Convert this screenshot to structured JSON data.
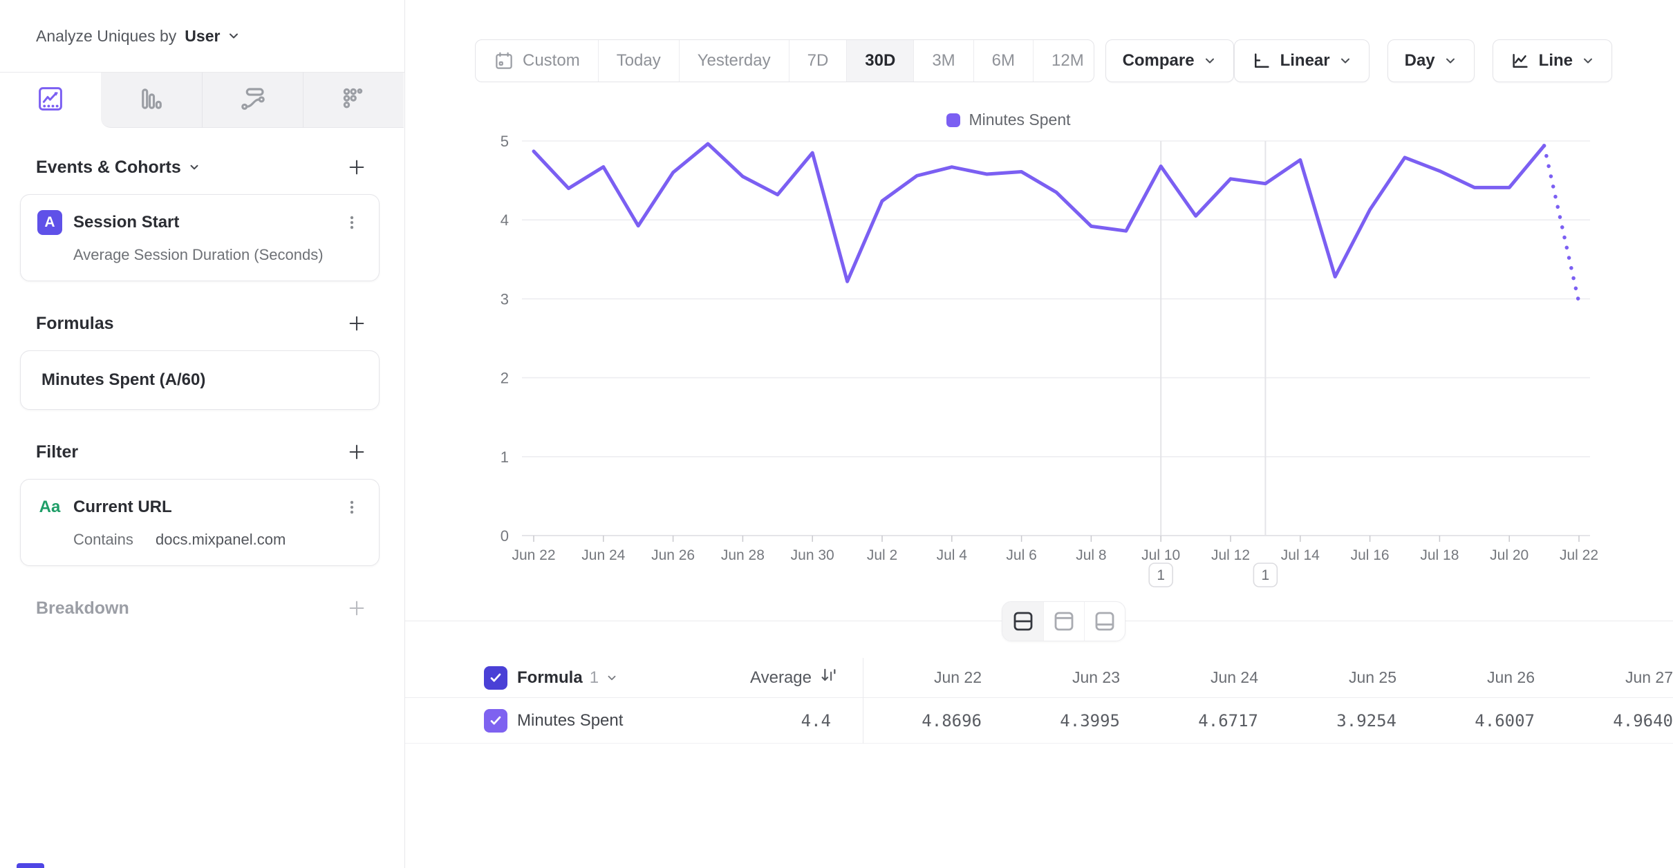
{
  "sidebar": {
    "analyze_label": "Analyze Uniques by",
    "analyze_value": "User",
    "tabs": [
      {
        "name": "insights-line",
        "active": true
      },
      {
        "name": "bar-chart",
        "active": false
      },
      {
        "name": "flow",
        "active": false
      },
      {
        "name": "metrics-grid",
        "active": false
      }
    ],
    "events_section": {
      "title": "Events & Cohorts"
    },
    "event_card": {
      "badge": "A",
      "title": "Session Start",
      "subtitle": "Average Session Duration (Seconds)"
    },
    "formulas_section": {
      "title": "Formulas"
    },
    "formula_card": {
      "title": "Minutes Spent (A/60)"
    },
    "filter_section": {
      "title": "Filter"
    },
    "filter_card": {
      "badge": "Aa",
      "title": "Current URL",
      "operator": "Contains",
      "value": "docs.mixpanel.com"
    },
    "breakdown_section": {
      "title": "Breakdown"
    }
  },
  "toolbar": {
    "date_ranges": [
      "Custom",
      "Today",
      "Yesterday",
      "7D",
      "30D",
      "3M",
      "6M",
      "12M"
    ],
    "active_range": "30D",
    "compare_label": "Compare",
    "scale_label": "Linear",
    "interval_label": "Day",
    "chart_type_label": "Line"
  },
  "chart_data": {
    "type": "line",
    "title": "",
    "xlabel": "",
    "ylabel": "",
    "ylim": [
      0,
      5
    ],
    "y_ticks": [
      0,
      1,
      2,
      3,
      4,
      5
    ],
    "grid": true,
    "legend_position": "top-center",
    "legend": [
      "Minutes Spent"
    ],
    "line_color": "#7b5ff2",
    "last_segment_dotted": true,
    "x": [
      "Jun 22",
      "Jun 23",
      "Jun 24",
      "Jun 25",
      "Jun 26",
      "Jun 27",
      "Jun 28",
      "Jun 29",
      "Jun 30",
      "Jul 1",
      "Jul 2",
      "Jul 3",
      "Jul 4",
      "Jul 5",
      "Jul 6",
      "Jul 7",
      "Jul 8",
      "Jul 9",
      "Jul 10",
      "Jul 11",
      "Jul 12",
      "Jul 13",
      "Jul 14",
      "Jul 15",
      "Jul 16",
      "Jul 17",
      "Jul 18",
      "Jul 19",
      "Jul 20",
      "Jul 21",
      "Jul 22"
    ],
    "x_tick_labels": [
      "Jun 22",
      "Jun 24",
      "Jun 26",
      "Jun 28",
      "Jun 30",
      "Jul 2",
      "Jul 4",
      "Jul 6",
      "Jul 8",
      "Jul 10",
      "Jul 12",
      "Jul 14",
      "Jul 16",
      "Jul 18",
      "Jul 20",
      "Jul 22"
    ],
    "series": [
      {
        "name": "Minutes Spent",
        "values": [
          4.8696,
          4.3995,
          4.6717,
          3.9254,
          4.6007,
          4.964,
          4.55,
          4.32,
          4.85,
          3.22,
          4.24,
          4.56,
          4.67,
          4.58,
          4.61,
          4.35,
          3.92,
          3.86,
          4.68,
          4.05,
          4.52,
          4.46,
          4.76,
          3.28,
          4.13,
          4.79,
          4.62,
          4.41,
          4.41,
          4.94,
          2.95
        ]
      }
    ],
    "annotations": [
      {
        "x": "Jul 10",
        "label": "1"
      },
      {
        "x": "Jul 13",
        "label": "1"
      }
    ]
  },
  "table": {
    "group_label": "Formula",
    "group_number": "1",
    "columns": [
      "Average",
      "Jun 22",
      "Jun 23",
      "Jun 24",
      "Jun 25",
      "Jun 26",
      "Jun 27"
    ],
    "row": {
      "label": "Minutes Spent",
      "values": [
        "4.4",
        "4.8696",
        "4.3995",
        "4.6717",
        "3.9254",
        "4.6007",
        "4.9640"
      ]
    }
  },
  "colors": {
    "accent_purple": "#7b5ff2",
    "indigo_badge": "#5f51e8",
    "checkbox_header": "#4a40d6",
    "checkbox_row": "#7e62f0",
    "green_property": "#1f9e68"
  }
}
